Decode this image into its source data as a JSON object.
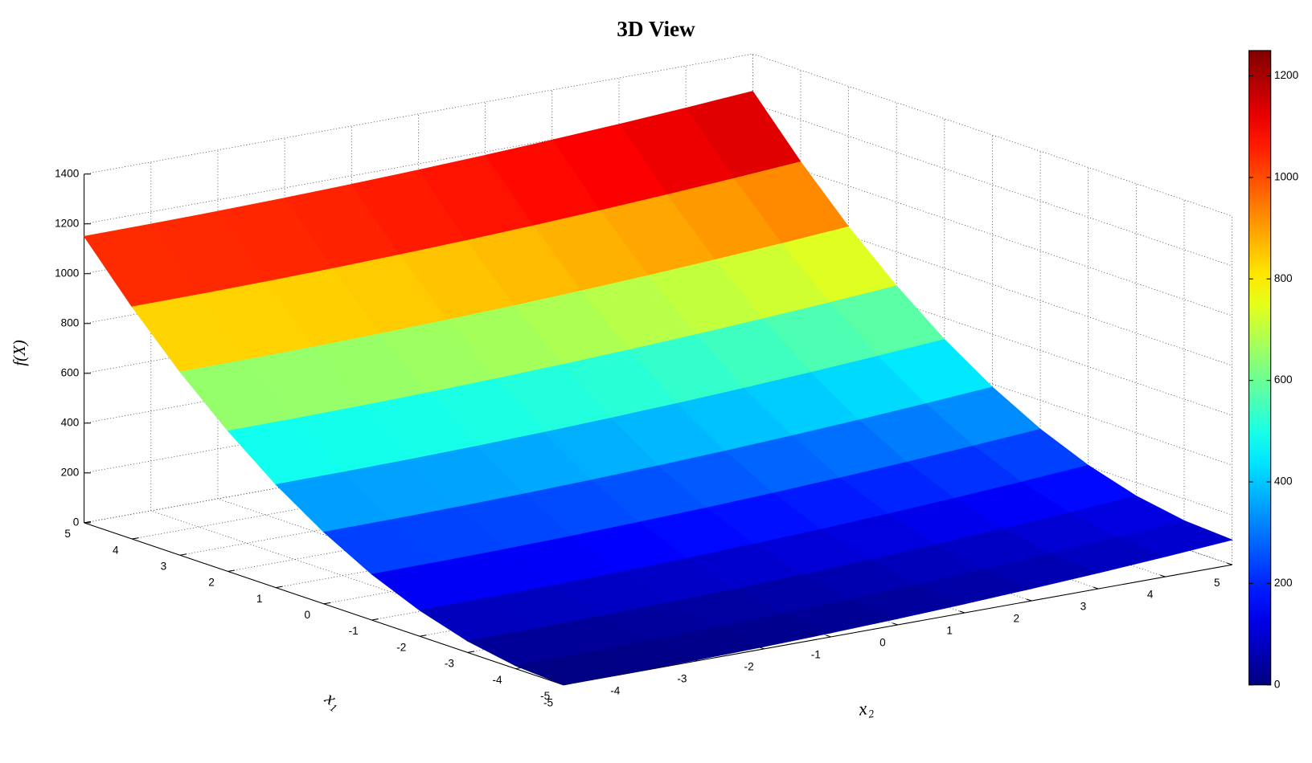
{
  "chart_data": {
    "type": "surface",
    "title": "3D View",
    "zlabel": "f(X)",
    "xlabel": "x₁",
    "ylabel": "x₂",
    "x": [
      -5,
      -4,
      -3,
      -2,
      -1,
      0,
      1,
      2,
      3,
      4,
      5
    ],
    "y": [
      -5,
      -4,
      -3,
      -2,
      -1,
      0,
      1,
      2,
      3,
      4,
      5
    ],
    "z": [
      [
        0,
        1,
        4,
        9,
        16,
        25,
        36,
        49,
        64,
        81,
        100
      ],
      [
        12,
        13,
        16,
        21,
        28,
        37,
        48,
        61,
        76,
        93,
        112
      ],
      [
        46,
        47,
        50,
        55,
        62,
        71,
        82,
        95,
        110,
        127,
        146
      ],
      [
        104,
        105,
        108,
        113,
        120,
        129,
        140,
        153,
        168,
        185,
        204
      ],
      [
        184,
        185,
        188,
        193,
        200,
        209,
        220,
        233,
        248,
        265,
        284
      ],
      [
        288,
        289,
        292,
        297,
        304,
        313,
        324,
        337,
        352,
        369,
        388
      ],
      [
        414,
        415,
        418,
        423,
        430,
        439,
        450,
        463,
        478,
        495,
        514
      ],
      [
        564,
        565,
        568,
        573,
        580,
        589,
        600,
        613,
        628,
        645,
        664
      ],
      [
        736,
        737,
        740,
        745,
        752,
        761,
        772,
        785,
        800,
        817,
        836
      ],
      [
        932,
        933,
        936,
        941,
        948,
        957,
        968,
        981,
        996,
        1013,
        1032
      ],
      [
        1150,
        1151,
        1154,
        1159,
        1166,
        1175,
        1186,
        1199,
        1214,
        1231,
        1250
      ]
    ],
    "xlim": [
      -5,
      5
    ],
    "ylim": [
      -5,
      5
    ],
    "zlim": [
      0,
      1400
    ],
    "xticks": [
      -5,
      -4,
      -3,
      -2,
      -1,
      0,
      1,
      2,
      3,
      4,
      5
    ],
    "yticks": [
      -5,
      -4,
      -3,
      -2,
      -1,
      0,
      1,
      2,
      3,
      4,
      5
    ],
    "zticks": [
      0,
      200,
      400,
      600,
      800,
      1000,
      1200,
      1400
    ],
    "clim": [
      0,
      1250
    ],
    "cticks": [
      0,
      200,
      400,
      600,
      800,
      1000,
      1200
    ],
    "colormap": "jet",
    "grid": true
  }
}
